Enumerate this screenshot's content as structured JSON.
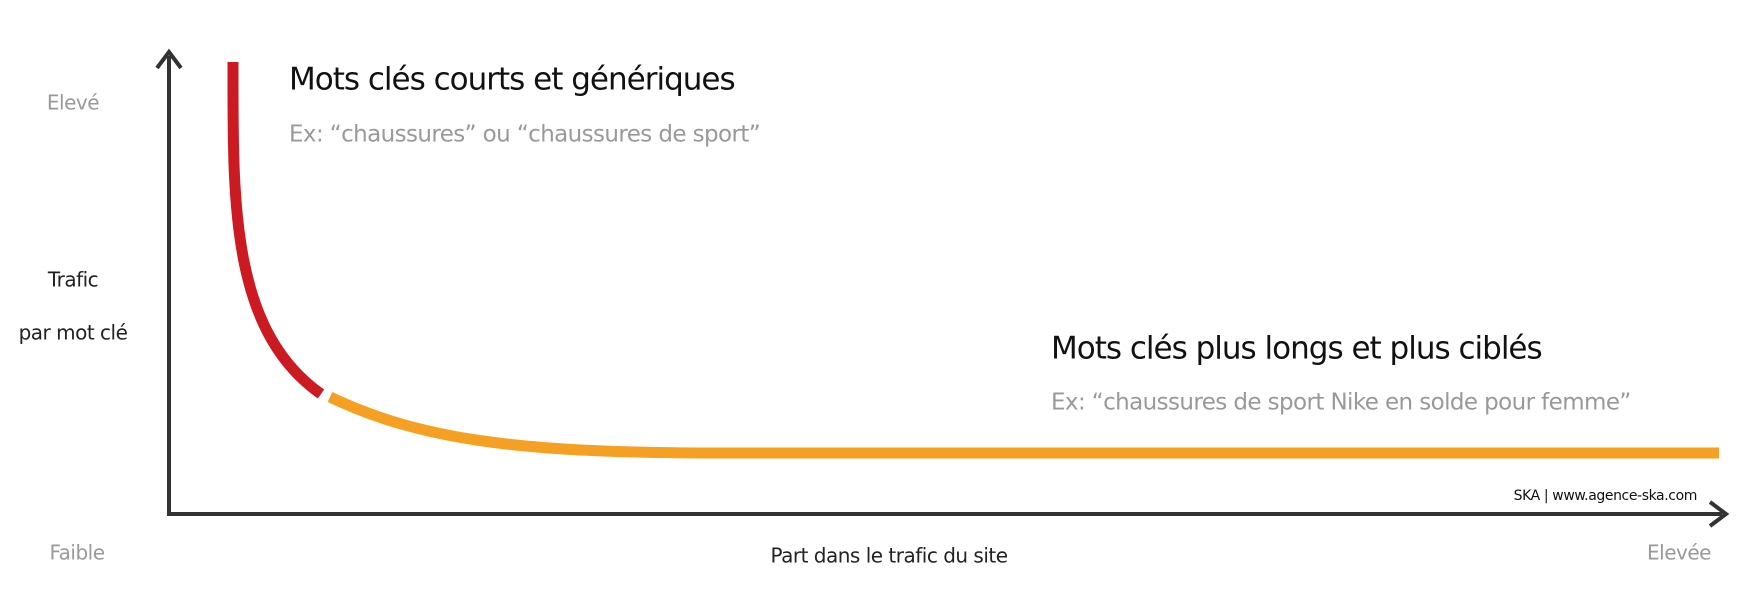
{
  "y_axis": {
    "high": "Elevé",
    "title": [
      "Trafic",
      "par mot clé"
    ],
    "low": "Faible"
  },
  "x_axis": {
    "title": "Part dans le trafic du site",
    "high": "Elevée"
  },
  "annotations": [
    {
      "title": "Mots clés courts et génériques",
      "example": "Ex: “chaussures” ou “chaussures de sport”"
    },
    {
      "title": "Mots clés plus longs et plus ciblés",
      "example": "Ex: “chaussures de sport Nike en solde pour femme”"
    }
  ],
  "credit": "SKA | www.agence-ska.com"
}
